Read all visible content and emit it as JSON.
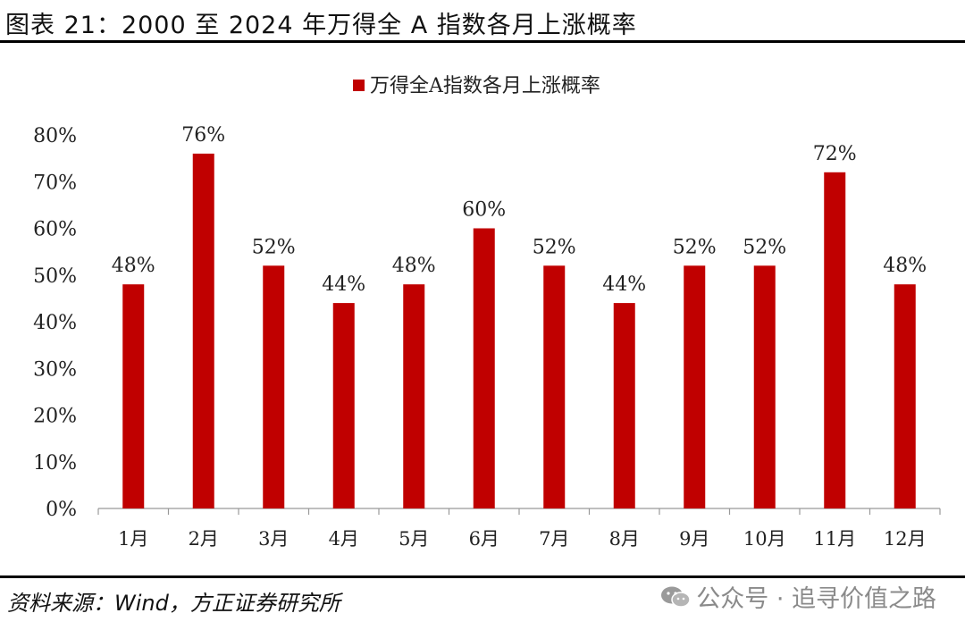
{
  "figure": {
    "title": "图表 21：2000 至 2024 年万得全 A 指数各月上涨概率",
    "source": "资料来源：Wind，方正证券研究所",
    "watermark": "公众号 · 追寻价值之路",
    "watermark_icon": "wechat-icon"
  },
  "chart_data": {
    "type": "bar",
    "title": "",
    "categories": [
      "1月",
      "2月",
      "3月",
      "4月",
      "5月",
      "6月",
      "7月",
      "8月",
      "9月",
      "10月",
      "11月",
      "12月"
    ],
    "series": [
      {
        "name": "万得全A指数各月上涨概率",
        "values": [
          48,
          76,
          52,
          44,
          48,
          60,
          52,
          44,
          52,
          52,
          72,
          48
        ],
        "color": "#c00000"
      }
    ],
    "data_labels": [
      "48%",
      "76%",
      "52%",
      "44%",
      "48%",
      "60%",
      "52%",
      "44%",
      "52%",
      "52%",
      "72%",
      "48%"
    ],
    "ylim": [
      0,
      80
    ],
    "yticks": [
      "0%",
      "10%",
      "20%",
      "30%",
      "40%",
      "50%",
      "60%",
      "70%",
      "80%"
    ],
    "xlabel": "",
    "ylabel": "",
    "grid": false,
    "legend": "top-center"
  }
}
